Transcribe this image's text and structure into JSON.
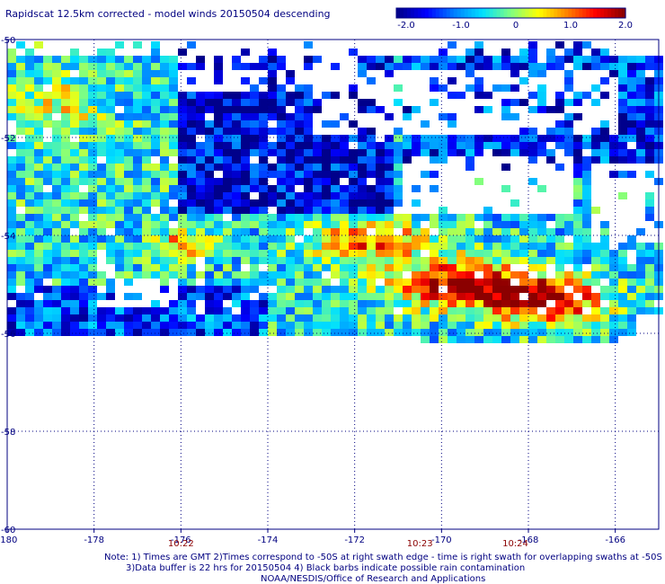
{
  "title": "Rapidscat 12.5km corrected - model winds 20150504 descending",
  "colorbar": {
    "ticks": [
      "-2.0",
      "-1.0",
      "0",
      "1.0",
      "2.0"
    ],
    "colors": [
      "#00008b",
      "#0000ff",
      "#0080ff",
      "#00e0ff",
      "#80ff80",
      "#ffff00",
      "#ff8000",
      "#ff0000",
      "#8b0000"
    ]
  },
  "chart_data": {
    "type": "heatmap",
    "title": "Rapidscat 12.5km corrected - model winds 20150504 descending",
    "x_ticks": [
      -180,
      -178,
      -176,
      -174,
      -172,
      -170,
      -168,
      -166
    ],
    "x_tick_labels": [
      "-180",
      "-178",
      "-176",
      "-174",
      "-172",
      "-170",
      "-168",
      "-166"
    ],
    "y_ticks": [
      -50,
      -52,
      -54,
      -56,
      -58,
      -60
    ],
    "y_tick_labels": [
      "-50",
      "-52",
      "-54",
      "-56",
      "-58",
      "-60"
    ],
    "xlim": [
      -180,
      -165
    ],
    "ylim": [
      -60,
      -50
    ],
    "color_range": [
      -2.0,
      2.0
    ],
    "grid": true,
    "times": [
      {
        "label": "10:22",
        "lon": -176
      },
      {
        "label": "10:23",
        "lon": -170.5
      },
      {
        "label": "10:24",
        "lon": -168.3
      }
    ]
  },
  "notes": {
    "line1": "Note: 1) Times are GMT 2)Times correspond to -50S at right swath edge - time is right swath for overlapping swaths at -50S",
    "line2": "3)Data buffer is 22 hrs for 20150504 4) Black barbs indicate possible rain contamination",
    "line3": "NOAA/NESDIS/Office of Research and Applications"
  },
  "colors": {
    "text": "#000080",
    "time_text": "#8b0000"
  }
}
